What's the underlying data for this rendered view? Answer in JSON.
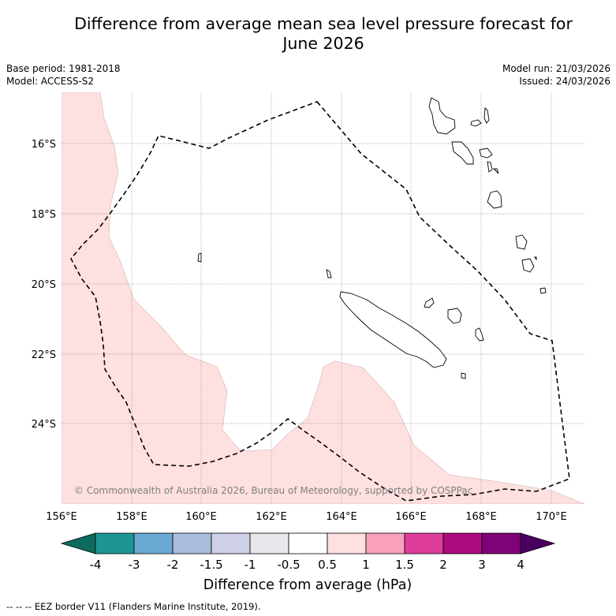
{
  "title_line1": "Difference from average mean sea level pressure forecast for",
  "title_line2": "June 2026",
  "meta_left": {
    "base_period": "Base period: 1981-2018",
    "model": "Model: ACCESS-S2"
  },
  "meta_right": {
    "model_run": "Model run: 21/03/2026",
    "issued": "Issued: 24/03/2026"
  },
  "map": {
    "lat_labels": [
      "16°S",
      "18°S",
      "20°S",
      "22°S",
      "24°S"
    ],
    "lon_labels": [
      "156°E",
      "158°E",
      "160°E",
      "162°E",
      "164°E",
      "166°E",
      "168°E",
      "170°E"
    ],
    "copyright": "© Commonwealth of Australia 2026, Bureau of Meteorology, supported by COSPPac",
    "anomaly_fill_color": "#fde0df"
  },
  "colorbar": {
    "title": "Difference from average (hPa)",
    "labels": [
      "-4",
      "-3",
      "-2",
      "-1.5",
      "-1",
      "-0.5",
      "0.5",
      "1",
      "1.5",
      "2",
      "3",
      "4"
    ],
    "colors": [
      "#0d6b5e",
      "#1e9595",
      "#6aaad2",
      "#a8bcdc",
      "#cdd0e6",
      "#e9e7ec",
      "#ffffff",
      "#fde0df",
      "#f9a1bb",
      "#df3d9b",
      "#ae0a7f",
      "#7f0276",
      "#4a0060"
    ]
  },
  "footnote": "--  --  -- EEZ border V11 (Flanders Marine Institute, 2019)."
}
